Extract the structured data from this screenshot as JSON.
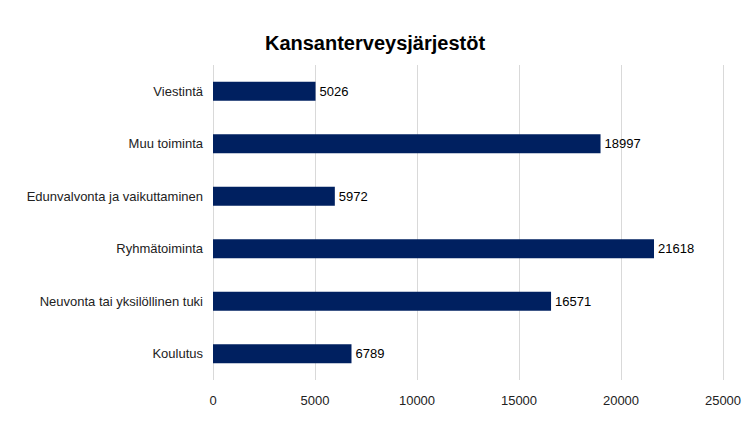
{
  "chart_data": {
    "type": "bar",
    "title": "Kansanterveysjärjestöt",
    "orientation": "horizontal",
    "categories": [
      "Viestintä",
      "Muu toiminta",
      "Edunvalvonta ja vaikuttaminen",
      "Ryhmätoiminta",
      "Neuvonta tai yksilöllinen tuki",
      "Koulutus"
    ],
    "values": [
      5026,
      18997,
      5972,
      21618,
      16571,
      6789
    ],
    "color": "#002060",
    "xlim": [
      0,
      25000
    ],
    "xticks": [
      0,
      5000,
      10000,
      15000,
      20000,
      25000
    ],
    "grid": true,
    "data_labels": true
  }
}
